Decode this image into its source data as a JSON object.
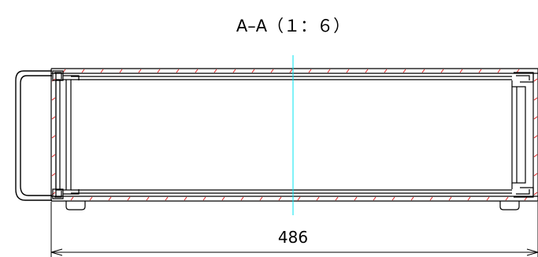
{
  "section_title": "A–A（１：６）",
  "dimension": {
    "overall_width_label": "486"
  },
  "colors": {
    "outline": "#000000",
    "hatch": "#e02020",
    "centerline": "#00e5f0",
    "background": "#ffffff"
  }
}
